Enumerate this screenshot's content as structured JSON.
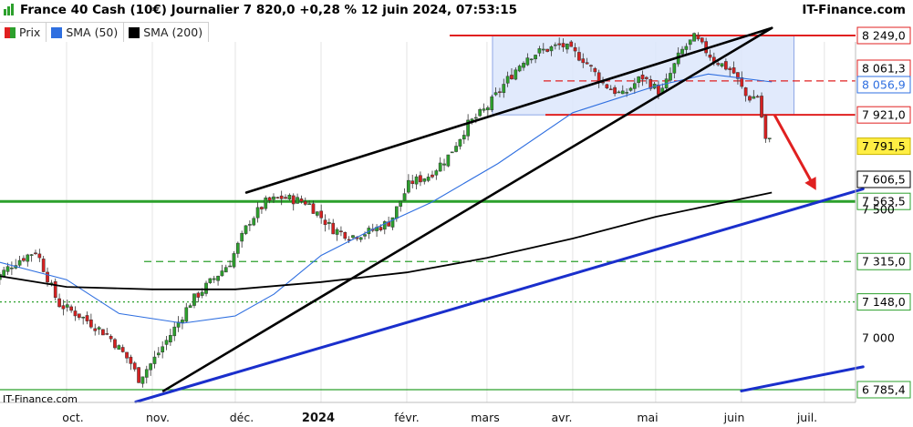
{
  "header": {
    "title": "France 40 Cash (10€) Journalier 7 820,0 +0,28 % 12 juin 2024, 07:53:15",
    "brand": "IT-Finance.com"
  },
  "legend": [
    {
      "label": "Prix",
      "color": "#2ca02c"
    },
    {
      "label": "SMA (50)",
      "color": "#2f6fe0"
    },
    {
      "label": "SMA (200)",
      "color": "#000000"
    }
  ],
  "watermark": "IT-Finance.com",
  "chart_data": {
    "type": "candlestick",
    "title": "France 40 Cash (10€) Journalier 7 820,0 +0,28 % 12 juin 2024, 07:53:15",
    "x_labels": [
      "oct.",
      "nov.",
      "déc.",
      "2024",
      "févr.",
      "mars",
      "avr.",
      "mai",
      "juin",
      "juil."
    ],
    "y_labels": [
      "8 249,0",
      "8 061,3",
      "8 056,9",
      "7 921,0",
      "7 791,5",
      "7 606,5",
      "7 563,5",
      "7 500",
      "7 315,0",
      "7 148,0",
      "7 000",
      "6 785,4"
    ],
    "y_tick_values": [
      8249.0,
      8061.3,
      8056.9,
      7921.0,
      7791.5,
      7606.5,
      7563.5,
      7500,
      7315.0,
      7148.0,
      7000,
      6785.4
    ],
    "ylim": [
      6750,
      8280
    ],
    "grid": true,
    "legend_position": "top-left",
    "series": [
      {
        "name": "Prix",
        "type": "candlestick",
        "anchors": [
          [
            "2023-09-04",
            7230
          ],
          [
            "2023-09-12",
            7310
          ],
          [
            "2023-09-20",
            7360
          ],
          [
            "2023-09-28",
            7140
          ],
          [
            "2023-10-06",
            7090
          ],
          [
            "2023-10-16",
            7010
          ],
          [
            "2023-10-24",
            6900
          ],
          [
            "2023-10-27",
            6830
          ],
          [
            "2023-11-01",
            6900
          ],
          [
            "2023-11-08",
            7020
          ],
          [
            "2023-11-15",
            7150
          ],
          [
            "2023-11-22",
            7230
          ],
          [
            "2023-11-29",
            7310
          ],
          [
            "2023-12-06",
            7480
          ],
          [
            "2023-12-12",
            7560
          ],
          [
            "2023-12-18",
            7580
          ],
          [
            "2023-12-27",
            7560
          ],
          [
            "2024-01-05",
            7450
          ],
          [
            "2024-01-12",
            7420
          ],
          [
            "2024-01-19",
            7440
          ],
          [
            "2024-01-26",
            7480
          ],
          [
            "2024-02-02",
            7640
          ],
          [
            "2024-02-09",
            7670
          ],
          [
            "2024-02-16",
            7750
          ],
          [
            "2024-02-23",
            7880
          ],
          [
            "2024-03-01",
            7950
          ],
          [
            "2024-03-08",
            8060
          ],
          [
            "2024-03-15",
            8160
          ],
          [
            "2024-03-22",
            8190
          ],
          [
            "2024-03-28",
            8210
          ],
          [
            "2024-04-05",
            8150
          ],
          [
            "2024-04-12",
            8050
          ],
          [
            "2024-04-19",
            8000
          ],
          [
            "2024-04-26",
            8080
          ],
          [
            "2024-05-03",
            8010
          ],
          [
            "2024-05-10",
            8180
          ],
          [
            "2024-05-15",
            8240
          ],
          [
            "2024-05-22",
            8150
          ],
          [
            "2024-05-29",
            8100
          ],
          [
            "2024-06-03",
            7990
          ],
          [
            "2024-06-07",
            8000
          ],
          [
            "2024-06-10",
            7800
          ],
          [
            "2024-06-12",
            7820
          ]
        ]
      },
      {
        "name": "SMA (50)",
        "type": "line",
        "color": "#2f6fe0",
        "points": [
          [
            "2023-09-04",
            7320
          ],
          [
            "2023-10-01",
            7240
          ],
          [
            "2023-10-20",
            7100
          ],
          [
            "2023-11-12",
            7060
          ],
          [
            "2023-12-01",
            7090
          ],
          [
            "2023-12-15",
            7180
          ],
          [
            "2024-01-01",
            7340
          ],
          [
            "2024-01-20",
            7450
          ],
          [
            "2024-02-10",
            7560
          ],
          [
            "2024-03-05",
            7720
          ],
          [
            "2024-04-01",
            7930
          ],
          [
            "2024-05-01",
            8040
          ],
          [
            "2024-05-20",
            8090
          ],
          [
            "2024-06-12",
            8057
          ]
        ]
      },
      {
        "name": "SMA (200)",
        "type": "line",
        "color": "#000000",
        "points": [
          [
            "2023-09-04",
            7260
          ],
          [
            "2023-10-01",
            7210
          ],
          [
            "2023-11-01",
            7200
          ],
          [
            "2023-12-01",
            7200
          ],
          [
            "2024-01-01",
            7230
          ],
          [
            "2024-02-01",
            7270
          ],
          [
            "2024-03-01",
            7330
          ],
          [
            "2024-04-01",
            7410
          ],
          [
            "2024-05-01",
            7500
          ],
          [
            "2024-06-12",
            7600
          ]
        ]
      }
    ],
    "annotations": [
      {
        "type": "channel_line",
        "color": "#000000",
        "from": [
          "2023-11-05",
          6780
        ],
        "to": [
          "2024-06-12",
          8280
        ]
      },
      {
        "type": "channel_line",
        "color": "#000000",
        "from": [
          "2023-12-05",
          7600
        ],
        "to": [
          "2024-06-12",
          8280
        ]
      },
      {
        "type": "trendline",
        "color": "#1a2fcc",
        "from": [
          "2023-10-26",
          6735
        ],
        "to": [
          "2024-07-15",
          7615
        ]
      },
      {
        "type": "trendline",
        "color": "#1a2fcc",
        "from": [
          "2024-06-01",
          6780
        ],
        "to": [
          "2024-07-15",
          6880
        ]
      },
      {
        "type": "hline",
        "color": "#e02020",
        "style": "solid",
        "value": 8249
      },
      {
        "type": "hline",
        "color": "#e02020",
        "style": "dashed",
        "value": 8061.3
      },
      {
        "type": "hline",
        "color": "#e02020",
        "style": "solid",
        "value": 7921
      },
      {
        "type": "hline",
        "color": "#2ca02c",
        "style": "solid-thick",
        "value": 7563.5
      },
      {
        "type": "hline",
        "color": "#2ca02c",
        "style": "dashed",
        "value": 7315
      },
      {
        "type": "hline",
        "color": "#2ca02c",
        "style": "dotted",
        "value": 7148
      },
      {
        "type": "hline",
        "color": "#2ca02c",
        "style": "solid",
        "value": 6785.4
      },
      {
        "type": "range_box",
        "color": "#dce6fb",
        "from": [
          "2024-03-03",
          7921
        ],
        "to": [
          "2024-06-20",
          8249
        ]
      },
      {
        "type": "arrow",
        "color": "#e02020",
        "from": [
          "2024-06-13",
          7920
        ],
        "to": [
          "2024-06-28",
          7610
        ]
      }
    ]
  }
}
